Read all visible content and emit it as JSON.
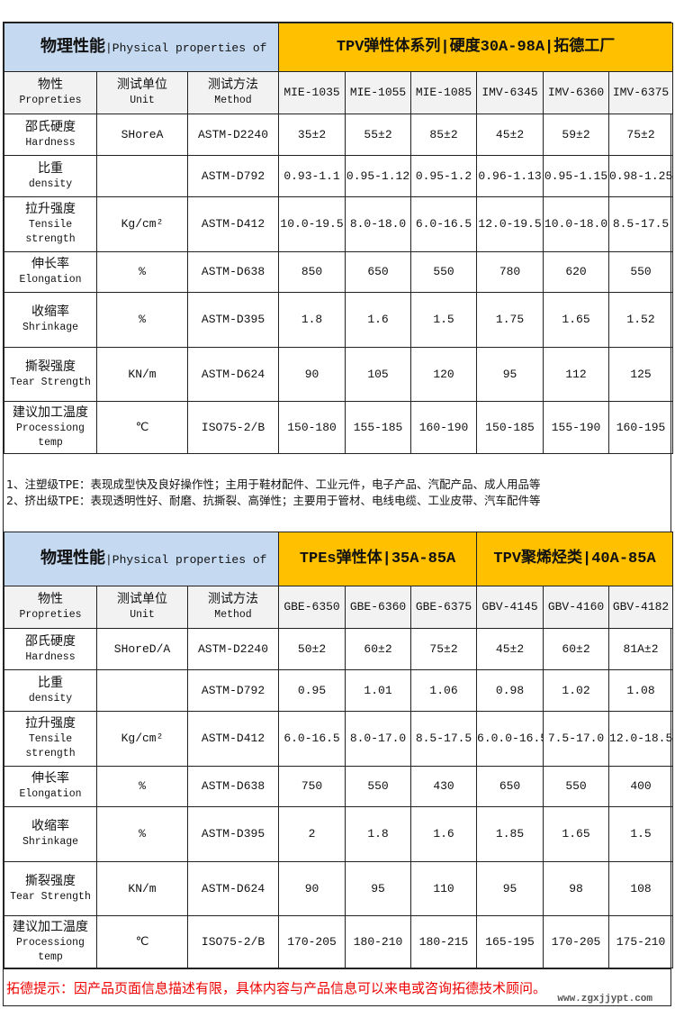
{
  "columns_widths_note": "",
  "table1": {
    "title_zh": "物理性能",
    "title_en": "|Physical properties of",
    "series_title": "TPV弹性体系列|硬度30A-98A|拓德工厂",
    "col_headers": [
      {
        "zh": "物性",
        "en": "Propreties"
      },
      {
        "zh": "测试单位",
        "en": "Unit"
      },
      {
        "zh": "测试方法",
        "en": "Method"
      }
    ],
    "models": [
      "MIE-1035",
      "MIE-1055",
      "MIE-1085",
      "IMV-6345",
      "IMV-6360",
      "IMV-6375"
    ],
    "rows": [
      {
        "zh": "邵氏硬度",
        "en": [
          "Hardness"
        ],
        "unit": "SHoreA",
        "method": "ASTM-D2240",
        "values": [
          "35±2",
          "55±2",
          "85±2",
          "45±2",
          "59±2",
          "75±2"
        ]
      },
      {
        "zh": "比重",
        "en": [
          "density"
        ],
        "unit": "",
        "method": "ASTM-D792",
        "values": [
          "0.93-1.1",
          "0.95-1.12",
          "0.95-1.2",
          "0.96-1.13",
          "0.95-1.15",
          "0.98-1.25"
        ]
      },
      {
        "zh": "拉升强度",
        "en": [
          "Tensile",
          "strength"
        ],
        "unit": "Kg/cm²",
        "method": "ASTM-D412",
        "values": [
          "10.0-19.5",
          "8.0-18.0",
          "6.0-16.5",
          "12.0-19.5",
          "10.0-18.0",
          "8.5-17.5"
        ]
      },
      {
        "zh": "伸长率",
        "en": [
          "Elongation"
        ],
        "unit": "%",
        "method": "ASTM-D638",
        "values": [
          "850",
          "650",
          "550",
          "780",
          "620",
          "550"
        ]
      },
      {
        "zh": "收缩率",
        "en": [
          "Shrinkage"
        ],
        "unit": "%",
        "method": "ASTM-D395",
        "values": [
          "1.8",
          "1.6",
          "1.5",
          "1.75",
          "1.65",
          "1.52"
        ]
      },
      {
        "zh": "撕裂强度",
        "en": [
          "Tear Strength"
        ],
        "unit": "KN/m",
        "method": "ASTM-D624",
        "values": [
          "90",
          "105",
          "120",
          "95",
          "112",
          "125"
        ]
      },
      {
        "zh": "建议加工温度",
        "en": [
          "Processiong",
          "temp"
        ],
        "unit": "℃",
        "method": "ISO75-2/B",
        "values": [
          "150-180",
          "155-185",
          "160-190",
          "150-185",
          "155-190",
          "160-195"
        ]
      }
    ]
  },
  "notes": [
    "1、注塑级TPE：表现成型快及良好操作性；主用于鞋材配件、工业元件，电子产品、汽配产品、成人用品等",
    "2、挤出级TPE：表现透明性好、耐磨、抗撕裂、高弹性；主要用于管材、电线电缆、工业皮带、汽车配件等"
  ],
  "table2": {
    "title_zh": "物理性能",
    "title_en": "|Physical properties of",
    "series_titles": [
      "TPEs弹性体|35A-85A",
      "TPV聚烯烃类|40A-85A"
    ],
    "col_headers": [
      {
        "zh": "物性",
        "en": "Propreties"
      },
      {
        "zh": "测试单位",
        "en": "Unit"
      },
      {
        "zh": "测试方法",
        "en": "Method"
      }
    ],
    "models": [
      "GBE-6350",
      "GBE-6360",
      "GBE-6375",
      "GBV-4145",
      "GBV-4160",
      "GBV-4182"
    ],
    "rows": [
      {
        "zh": "邵氏硬度",
        "en": [
          "Hardness"
        ],
        "unit": "SHoreD/A",
        "method": "ASTM-D2240",
        "values": [
          "50±2",
          "60±2",
          "75±2",
          "45±2",
          "60±2",
          "81A±2"
        ]
      },
      {
        "zh": "比重",
        "en": [
          "density"
        ],
        "unit": "",
        "method": "ASTM-D792",
        "values": [
          "0.95",
          "1.01",
          "1.06",
          "0.98",
          "1.02",
          "1.08"
        ]
      },
      {
        "zh": "拉升强度",
        "en": [
          "Tensile",
          "strength"
        ],
        "unit": "Kg/cm²",
        "method": "ASTM-D412",
        "values": [
          "6.0-16.5",
          "8.0-17.0",
          "8.5-17.5",
          "6.0.0-16.5",
          "7.5-17.0",
          "12.0-18.5"
        ]
      },
      {
        "zh": "伸长率",
        "en": [
          "Elongation"
        ],
        "unit": "%",
        "method": "ASTM-D638",
        "values": [
          "750",
          "550",
          "430",
          "650",
          "550",
          "400"
        ]
      },
      {
        "zh": "收缩率",
        "en": [
          "Shrinkage"
        ],
        "unit": "%",
        "method": "ASTM-D395",
        "values": [
          "2",
          "1.8",
          "1.6",
          "1.85",
          "1.65",
          "1.5"
        ]
      },
      {
        "zh": "撕裂强度",
        "en": [
          "Tear Strength"
        ],
        "unit": "KN/m",
        "method": "ASTM-D624",
        "values": [
          "90",
          "95",
          "110",
          "95",
          "98",
          "108"
        ]
      },
      {
        "zh": "建议加工温度",
        "en": [
          "Processiong",
          "temp"
        ],
        "unit": "℃",
        "method": "ISO75-2/B",
        "values": [
          "170-205",
          "180-210",
          "180-215",
          "165-195",
          "170-205",
          "175-210"
        ]
      }
    ]
  },
  "footer": {
    "tip": "拓德提示：因产品页面信息描述有限，具体内容与产品信息可以来电或咨询拓德技术顾问。",
    "watermark": "www.zgxjjypt.com"
  },
  "colors": {
    "header_blue": "#c5d9f1",
    "header_gold": "#ffc000",
    "tip_red": "#e00000"
  }
}
